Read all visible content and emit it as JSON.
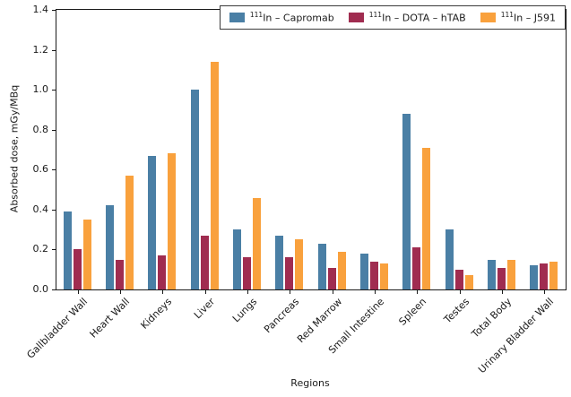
{
  "chart_data": {
    "type": "bar",
    "title": "",
    "xlabel": "Regions",
    "ylabel": "Absorbed dose, mGy/MBq",
    "ylim": [
      0,
      1.4
    ],
    "ytick_labels": [
      "0.0",
      "0.2",
      "0.4",
      "0.6",
      "0.8",
      "1.0",
      "1.2",
      "1.4"
    ],
    "grid": false,
    "legend_position": "top-inside",
    "categories": [
      "Gallbladder Wall",
      "Heart Wall",
      "Kidneys",
      "Liver",
      "Lungs",
      "Pancreas",
      "Red Marrow",
      "Small Intestine",
      "Spleen",
      "Testes",
      "Total Body",
      "Urinary Bladder Wall"
    ],
    "series": [
      {
        "name": "111In – Capromab",
        "sup": "111",
        "label": "In – Capromab",
        "color": "#4A7FA5",
        "values": [
          0.39,
          0.42,
          0.67,
          1.0,
          0.3,
          0.27,
          0.23,
          0.18,
          0.88,
          0.3,
          0.15,
          0.12
        ]
      },
      {
        "name": "111In – DOTA – hTAB",
        "sup": "111",
        "label": "In – DOTA – hTAB",
        "color": "#A02C50",
        "values": [
          0.2,
          0.15,
          0.17,
          0.27,
          0.16,
          0.16,
          0.11,
          0.14,
          0.21,
          0.1,
          0.11,
          0.13
        ]
      },
      {
        "name": "111In – J591",
        "sup": "111",
        "label": "In – J591",
        "color": "#F9A13D",
        "values": [
          0.35,
          0.57,
          0.68,
          1.14,
          0.46,
          0.25,
          0.19,
          0.13,
          0.71,
          0.07,
          0.15,
          0.14
        ]
      }
    ]
  }
}
